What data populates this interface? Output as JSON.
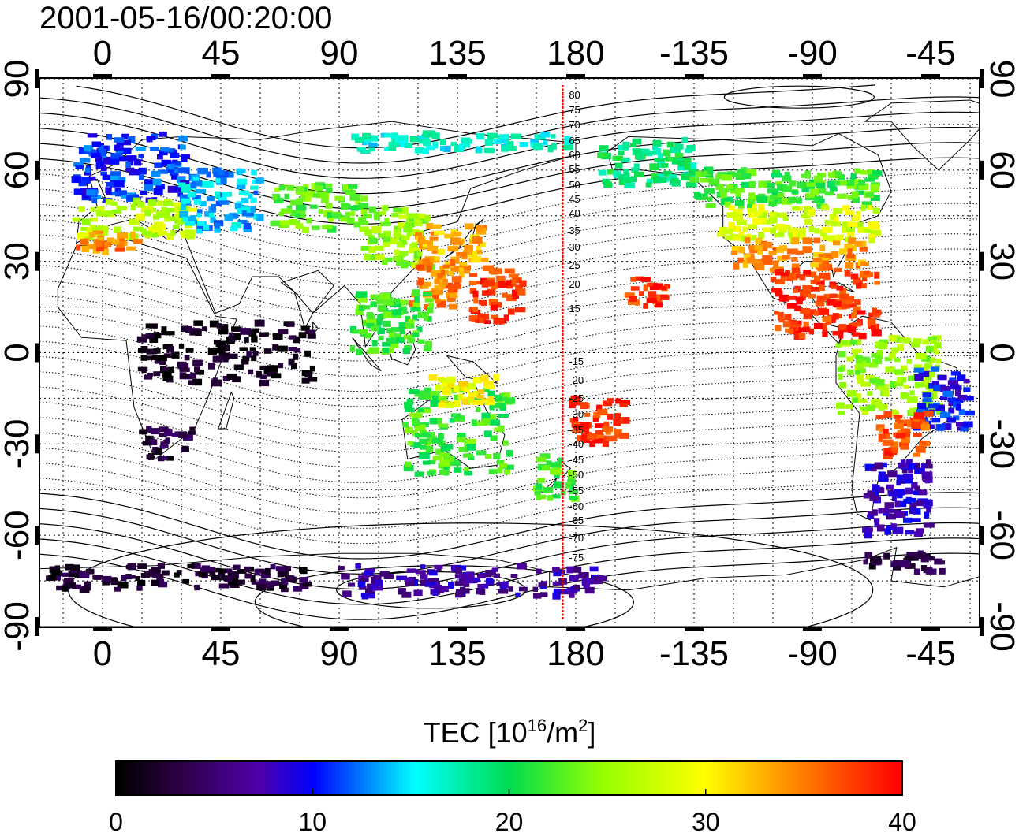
{
  "title": "2001-05-16/00:20:00",
  "map": {
    "projection": "cylindrical equidistant",
    "center_longitude": 156,
    "lon_range": [
      -24,
      336
    ],
    "lat_range": [
      -90,
      90
    ],
    "grid": "dotted every 15 degrees",
    "lon_tick_values": [
      0,
      45,
      90,
      135,
      180,
      225,
      270,
      315
    ],
    "lon_tick_labels": [
      "0",
      "45",
      "90",
      "135",
      "180",
      "-135",
      "-90",
      "-45"
    ],
    "lat_tick_values": [
      90,
      60,
      30,
      0,
      -30,
      -60,
      -90
    ],
    "lat_tick_labels": [
      "90",
      "60",
      "30",
      "0",
      "-30",
      "-60",
      "-90"
    ],
    "meridian_line": {
      "longitude": 175,
      "color": "#e00000"
    },
    "mlat_labels": [
      "80",
      "75",
      "70",
      "65",
      "60",
      "55",
      "50",
      "45",
      "40",
      "35",
      "30",
      "25",
      "20",
      "15",
      "-15",
      "-20",
      "-25",
      "-30",
      "-35",
      "-40",
      "-45",
      "-50",
      "-55",
      "-60",
      "-65",
      "-70",
      "-75"
    ]
  },
  "colorbar": {
    "label_prefix": "TEC  [10",
    "label_sup1": "16",
    "label_mid": "/m",
    "label_sup2": "2",
    "label_suffix": "]",
    "min": 0,
    "max": 40,
    "tick_values": [
      0,
      10,
      20,
      30,
      40
    ],
    "tick_labels": [
      "0",
      "10",
      "20",
      "30",
      "40"
    ],
    "colormap": "jet-like (black - purple - blue - cyan - green - yellow - red)"
  },
  "tec_regions": [
    {
      "name": "europe-north",
      "lon": [
        -10,
        32
      ],
      "lat": [
        50,
        72
      ],
      "tec": 11
    },
    {
      "name": "europe-south",
      "lon": [
        -10,
        35
      ],
      "lat": [
        38,
        50
      ],
      "tec": 27
    },
    {
      "name": "iberia-mediterranean",
      "lon": [
        -10,
        15
      ],
      "lat": [
        33,
        40
      ],
      "tec": 35
    },
    {
      "name": "eastern-europe-russia",
      "lon": [
        30,
        60
      ],
      "lat": [
        40,
        60
      ],
      "tec": 14
    },
    {
      "name": "central-asia",
      "lon": [
        65,
        100
      ],
      "lat": [
        40,
        55
      ],
      "tec": 23
    },
    {
      "name": "siberia-north",
      "lon": [
        95,
        180
      ],
      "lat": [
        66,
        72
      ],
      "tec": 16
    },
    {
      "name": "china-east",
      "lon": [
        100,
        125
      ],
      "lat": [
        28,
        48
      ],
      "tec": 25
    },
    {
      "name": "japan-korea",
      "lon": [
        120,
        145
      ],
      "lat": [
        25,
        42
      ],
      "tec": 33
    },
    {
      "name": "taiwan-philippines",
      "lon": [
        118,
        135
      ],
      "lat": [
        15,
        30
      ],
      "tec": 35
    },
    {
      "name": "western-pacific-islands",
      "lon": [
        140,
        160
      ],
      "lat": [
        10,
        28
      ],
      "tec": 38
    },
    {
      "name": "southeast-asia",
      "lon": [
        95,
        125
      ],
      "lat": [
        0,
        20
      ],
      "tec": 22
    },
    {
      "name": "australia",
      "lon": [
        115,
        155
      ],
      "lat": [
        -40,
        -12
      ],
      "tec": 22
    },
    {
      "name": "indonesia-north-australia",
      "lon": [
        125,
        150
      ],
      "lat": [
        -18,
        -8
      ],
      "tec": 30
    },
    {
      "name": "new-zealand",
      "lon": [
        165,
        180
      ],
      "lat": [
        -48,
        -34
      ],
      "tec": 22
    },
    {
      "name": "southwest-pacific",
      "lon": [
        178,
        200
      ],
      "lat": [
        -30,
        -15
      ],
      "tec": 38
    },
    {
      "name": "hawaii-east-pacific",
      "lon": [
        200,
        215
      ],
      "lat": [
        15,
        25
      ],
      "tec": 38
    },
    {
      "name": "alaska",
      "lon": [
        190,
        225
      ],
      "lat": [
        55,
        70
      ],
      "tec": 19
    },
    {
      "name": "canada",
      "lon": [
        225,
        295
      ],
      "lat": [
        48,
        60
      ],
      "tec": 22
    },
    {
      "name": "usa-north",
      "lon": [
        235,
        295
      ],
      "lat": [
        37,
        48
      ],
      "tec": 28
    },
    {
      "name": "usa-south",
      "lon": [
        240,
        290
      ],
      "lat": [
        27,
        37
      ],
      "tec": 34
    },
    {
      "name": "mexico-caribbean",
      "lon": [
        255,
        295
      ],
      "lat": [
        5,
        27
      ],
      "tec": 38
    },
    {
      "name": "south-america-north",
      "lon": [
        280,
        320
      ],
      "lat": [
        -20,
        5
      ],
      "tec": 25
    },
    {
      "name": "brazil-east",
      "lon": [
        310,
        330
      ],
      "lat": [
        -25,
        -5
      ],
      "tec": 10
    },
    {
      "name": "south-america-middle",
      "lon": [
        295,
        315
      ],
      "lat": [
        -35,
        -20
      ],
      "tec": 37
    },
    {
      "name": "argentina-south",
      "lon": [
        290,
        315
      ],
      "lat": [
        -60,
        -35
      ],
      "tec": 8
    },
    {
      "name": "southern-africa",
      "lon": [
        15,
        35
      ],
      "lat": [
        -35,
        -25
      ],
      "tec": 3
    },
    {
      "name": "africa-central",
      "lon": [
        15,
        80
      ],
      "lat": [
        -10,
        10
      ],
      "tec": 1
    },
    {
      "name": "antarctica-coast-west",
      "lon": [
        -20,
        80
      ],
      "lat": [
        -78,
        -70
      ],
      "tec": 2
    },
    {
      "name": "antarctica-coast-east",
      "lon": [
        90,
        190
      ],
      "lat": [
        -80,
        -70
      ],
      "tec": 7
    },
    {
      "name": "antarctica-peninsula",
      "lon": [
        290,
        320
      ],
      "lat": [
        -72,
        -65
      ],
      "tec": 3
    }
  ]
}
